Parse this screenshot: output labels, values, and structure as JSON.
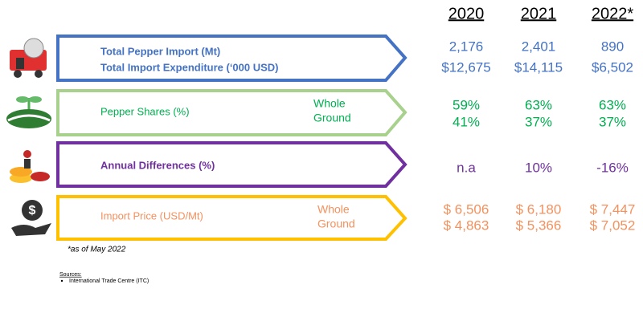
{
  "years": [
    "2020",
    "2021",
    "2022*"
  ],
  "rows": [
    {
      "labels": [
        "Total Pepper Import (Mt)",
        "Total Import Expenditure (‘000 USD)"
      ],
      "sublabels": [],
      "values": [
        [
          "2,176",
          "2,401",
          "890"
        ],
        [
          "$12,675",
          "$14,115",
          "$6,502"
        ]
      ]
    },
    {
      "labels": [
        "Pepper Shares (%)"
      ],
      "sublabels": [
        "Whole",
        "Ground"
      ],
      "values": [
        [
          "59%",
          "63%",
          "63%"
        ],
        [
          "41%",
          "37%",
          "37%"
        ]
      ]
    },
    {
      "labels": [
        "Annual Differences (%)"
      ],
      "sublabels": [],
      "values": [
        [
          "n.a",
          "10%",
          "-16%"
        ]
      ]
    },
    {
      "labels": [
        "Import Price (USD/Mt)"
      ],
      "sublabels": [
        "Whole",
        "Ground"
      ],
      "values": [
        [
          "$ 6,506",
          "$ 6,180",
          "$ 7,447"
        ],
        [
          "$ 4,863",
          "$ 5,366",
          "$ 7,052"
        ]
      ]
    }
  ],
  "note": "*as of May 2022",
  "sources": {
    "title": "Sources:",
    "items": [
      "International Trade Centre (ITC)"
    ]
  }
}
